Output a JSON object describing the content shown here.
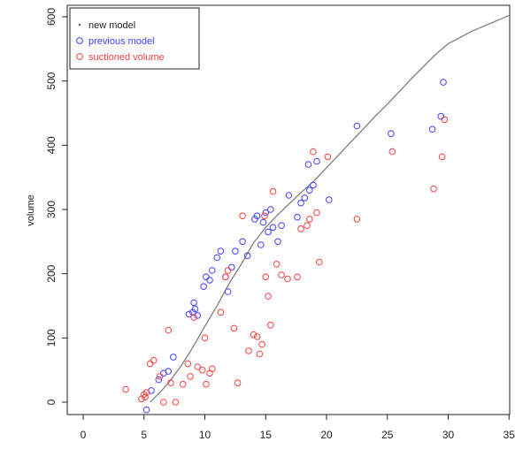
{
  "chart_data": {
    "type": "scatter",
    "title": "",
    "xlabel": "",
    "ylabel": "volume",
    "xlim": [
      0,
      35
    ],
    "ylim": [
      0,
      600
    ],
    "x_ticks": [
      0,
      5,
      10,
      15,
      20,
      25,
      30,
      35
    ],
    "y_ticks": [
      0,
      100,
      200,
      300,
      400,
      500,
      600
    ],
    "grid": false,
    "legend_position": "top-left",
    "series": [
      {
        "name": "new model",
        "style": "line",
        "color": "#777777",
        "points": [
          [
            5.5,
            0
          ],
          [
            6.3,
            15
          ],
          [
            7,
            30
          ],
          [
            8,
            55
          ],
          [
            9,
            85
          ],
          [
            10,
            118
          ],
          [
            11,
            150
          ],
          [
            12,
            185
          ],
          [
            13,
            215
          ],
          [
            14,
            248
          ],
          [
            15,
            272
          ],
          [
            16,
            292
          ],
          [
            17,
            310
          ],
          [
            18,
            328
          ],
          [
            19,
            345
          ],
          [
            20,
            365
          ],
          [
            21,
            385
          ],
          [
            22,
            405
          ],
          [
            23,
            425
          ],
          [
            24,
            445
          ],
          [
            25,
            464
          ],
          [
            26,
            484
          ],
          [
            27,
            504
          ],
          [
            28,
            523
          ],
          [
            29,
            542
          ],
          [
            30,
            558
          ],
          [
            31,
            568
          ],
          [
            32,
            578
          ],
          [
            33,
            586
          ],
          [
            34,
            594
          ],
          [
            35,
            602
          ]
        ]
      },
      {
        "name": "previous model",
        "style": "circle",
        "color": "#3f3fff",
        "points": [
          [
            5.2,
            -12
          ],
          [
            5.6,
            18
          ],
          [
            6.2,
            35
          ],
          [
            6.6,
            45
          ],
          [
            7,
            48
          ],
          [
            7.4,
            70
          ],
          [
            8.7,
            137
          ],
          [
            9,
            140
          ],
          [
            9.2,
            145
          ],
          [
            9.1,
            155
          ],
          [
            9.4,
            135
          ],
          [
            9.9,
            180
          ],
          [
            10.1,
            195
          ],
          [
            10.4,
            190
          ],
          [
            10.6,
            205
          ],
          [
            11,
            225
          ],
          [
            11.3,
            235
          ],
          [
            11.7,
            195
          ],
          [
            11.9,
            172
          ],
          [
            12.2,
            210
          ],
          [
            12.5,
            235
          ],
          [
            13.1,
            250
          ],
          [
            13.5,
            228
          ],
          [
            14.1,
            285
          ],
          [
            14.3,
            290
          ],
          [
            14.6,
            245
          ],
          [
            14.8,
            280
          ],
          [
            15,
            295
          ],
          [
            15.2,
            265
          ],
          [
            15.4,
            300
          ],
          [
            15.6,
            272
          ],
          [
            16,
            250
          ],
          [
            16.3,
            275
          ],
          [
            16.9,
            322
          ],
          [
            17.6,
            288
          ],
          [
            17.9,
            310
          ],
          [
            18.2,
            318
          ],
          [
            18.6,
            330
          ],
          [
            18.9,
            338
          ],
          [
            18.5,
            370
          ],
          [
            19.2,
            375
          ],
          [
            20.2,
            315
          ],
          [
            22.5,
            430
          ],
          [
            25.3,
            418
          ],
          [
            28.7,
            425
          ],
          [
            29.4,
            445
          ],
          [
            29.6,
            498
          ]
        ]
      },
      {
        "name": "suctioned volume",
        "style": "circle",
        "color": "#ff3f3f",
        "points": [
          [
            3.5,
            20
          ],
          [
            4.8,
            5
          ],
          [
            5,
            12
          ],
          [
            5.2,
            15
          ],
          [
            5.1,
            8
          ],
          [
            5.5,
            60
          ],
          [
            5.8,
            65
          ],
          [
            6.3,
            40
          ],
          [
            6.6,
            0
          ],
          [
            7,
            112
          ],
          [
            7.2,
            30
          ],
          [
            7.6,
            0
          ],
          [
            8.2,
            28
          ],
          [
            8.6,
            60
          ],
          [
            8.8,
            40
          ],
          [
            9.1,
            132
          ],
          [
            9.4,
            55
          ],
          [
            9.8,
            50
          ],
          [
            10,
            100
          ],
          [
            10.1,
            28
          ],
          [
            10.4,
            45
          ],
          [
            10.6,
            52
          ],
          [
            11.3,
            140
          ],
          [
            11.7,
            195
          ],
          [
            11.9,
            205
          ],
          [
            12.4,
            115
          ],
          [
            12.7,
            30
          ],
          [
            13.1,
            290
          ],
          [
            13.6,
            80
          ],
          [
            14,
            105
          ],
          [
            14.3,
            102
          ],
          [
            14.5,
            75
          ],
          [
            14.7,
            90
          ],
          [
            14.9,
            290
          ],
          [
            15,
            195
          ],
          [
            15.2,
            165
          ],
          [
            15.6,
            328
          ],
          [
            15.4,
            120
          ],
          [
            15.9,
            215
          ],
          [
            16.3,
            198
          ],
          [
            16.8,
            192
          ],
          [
            17.6,
            195
          ],
          [
            17.9,
            270
          ],
          [
            18.4,
            275
          ],
          [
            18.6,
            285
          ],
          [
            18.9,
            390
          ],
          [
            19.2,
            295
          ],
          [
            19.4,
            218
          ],
          [
            20.1,
            382
          ],
          [
            22.5,
            285
          ],
          [
            25.4,
            390
          ],
          [
            28.8,
            332
          ],
          [
            29.5,
            382
          ],
          [
            29.7,
            440
          ]
        ]
      }
    ]
  }
}
